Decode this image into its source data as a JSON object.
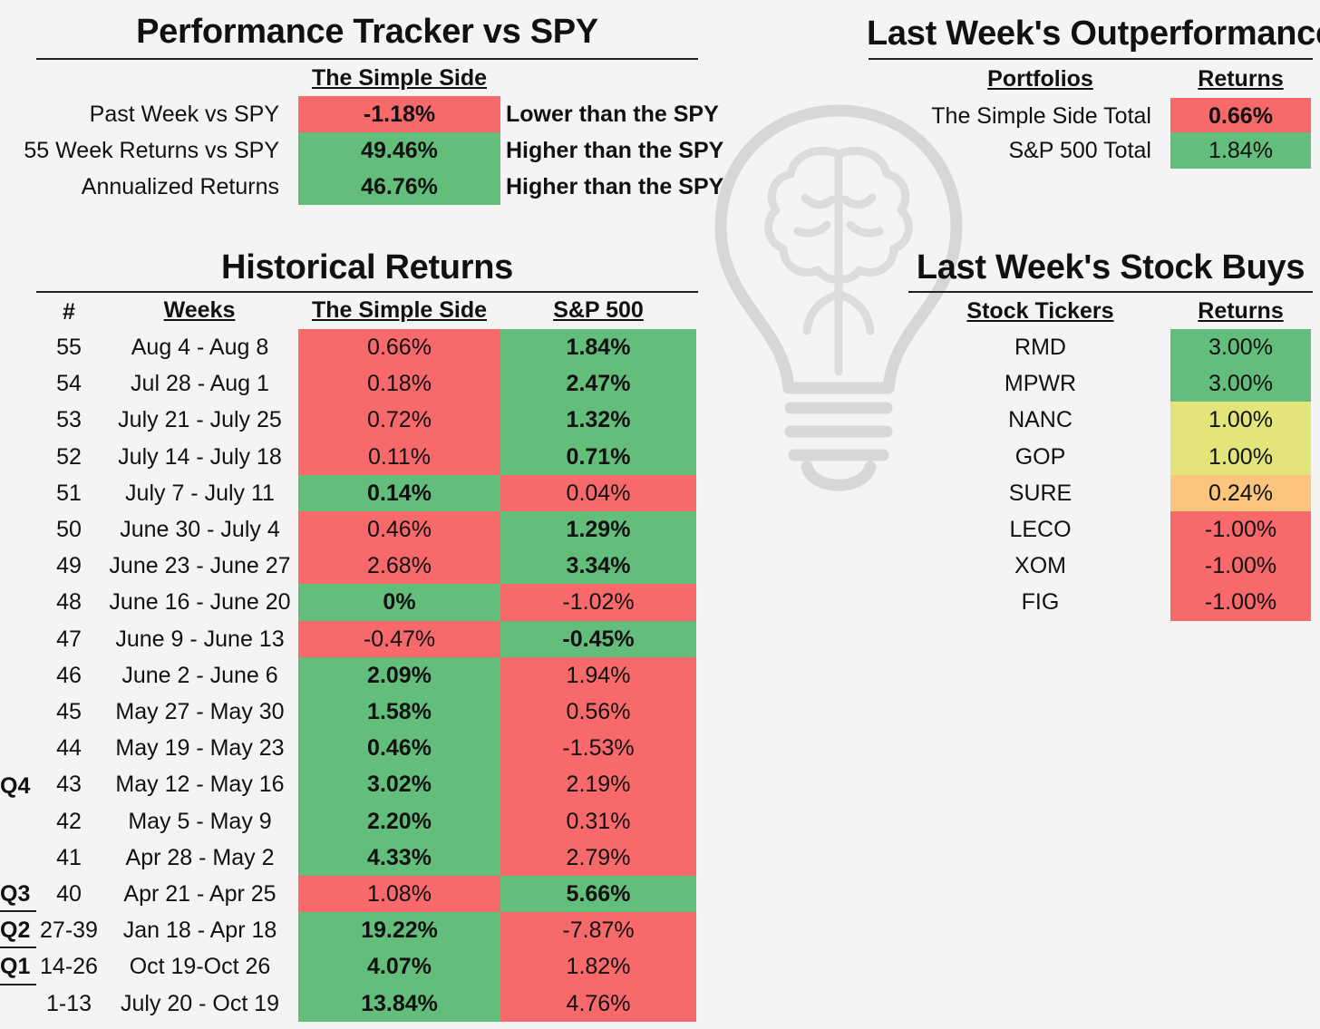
{
  "colors": {
    "green": "#63be7b",
    "red": "#f8696b",
    "yellow": "#e3e57a",
    "orange": "#fbc57d"
  },
  "tracker": {
    "title": "Performance Tracker vs SPY",
    "column_header": "The Simple Side",
    "rows": [
      {
        "label": "Past Week vs SPY",
        "value": "-1.18%",
        "note": "Lower than the SPY",
        "color": "red"
      },
      {
        "label": "55 Week Returns vs SPY",
        "value": "49.46%",
        "note": "Higher than the SPY",
        "color": "green"
      },
      {
        "label": "Annualized Returns",
        "value": "46.76%",
        "note": "Higher than the SPY",
        "color": "green"
      }
    ]
  },
  "outperformance": {
    "title": "Last Week's Outperformance",
    "headers": {
      "portfolios": "Portfolios",
      "returns": "Returns"
    },
    "rows": [
      {
        "name": "The Simple Side Total",
        "value": "0.66%",
        "color": "red",
        "bold": true
      },
      {
        "name": "S&P 500 Total",
        "value": "1.84%",
        "color": "green",
        "bold": false
      }
    ]
  },
  "historical": {
    "title": "Historical Returns",
    "headers": {
      "num": "#",
      "weeks": "Weeks",
      "simple": "The Simple Side",
      "sp": "S&P 500"
    },
    "quarters": {
      "q4": "Q4",
      "q3": "Q3",
      "q2": "Q2",
      "q1": "Q1"
    },
    "rows": [
      {
        "num": "55",
        "weeks": "Aug 4 - Aug 8",
        "simple": "0.66%",
        "sp": "1.84%",
        "winner": "sp"
      },
      {
        "num": "54",
        "weeks": "Jul 28 - Aug 1",
        "simple": "0.18%",
        "sp": "2.47%",
        "winner": "sp"
      },
      {
        "num": "53",
        "weeks": "July 21 - July 25",
        "simple": "0.72%",
        "sp": "1.32%",
        "winner": "sp"
      },
      {
        "num": "52",
        "weeks": "July 14 - July 18",
        "simple": "0.11%",
        "sp": "0.71%",
        "winner": "sp"
      },
      {
        "num": "51",
        "weeks": "July 7 - July 11",
        "simple": "0.14%",
        "sp": "0.04%",
        "winner": "simple"
      },
      {
        "num": "50",
        "weeks": "June 30 - July 4",
        "simple": "0.46%",
        "sp": "1.29%",
        "winner": "sp"
      },
      {
        "num": "49",
        "weeks": "June 23 - June 27",
        "simple": "2.68%",
        "sp": "3.34%",
        "winner": "sp"
      },
      {
        "num": "48",
        "weeks": "June 16 - June 20",
        "simple": "0%",
        "sp": "-1.02%",
        "winner": "simple"
      },
      {
        "num": "47",
        "weeks": "June 9 - June 13",
        "simple": "-0.47%",
        "sp": "-0.45%",
        "winner": "sp"
      },
      {
        "num": "46",
        "weeks": "June 2 - June 6",
        "simple": "2.09%",
        "sp": "1.94%",
        "winner": "simple"
      },
      {
        "num": "45",
        "weeks": "May 27 - May 30",
        "simple": "1.58%",
        "sp": "0.56%",
        "winner": "simple"
      },
      {
        "num": "44",
        "weeks": "May 19 - May 23",
        "simple": "0.46%",
        "sp": "-1.53%",
        "winner": "simple"
      },
      {
        "num": "43",
        "weeks": "May 12 - May 16",
        "simple": "3.02%",
        "sp": "2.19%",
        "winner": "simple"
      },
      {
        "num": "42",
        "weeks": "May 5 - May 9",
        "simple": "2.20%",
        "sp": "0.31%",
        "winner": "simple"
      },
      {
        "num": "41",
        "weeks": "Apr 28 - May 2",
        "simple": "4.33%",
        "sp": "2.79%",
        "winner": "simple"
      },
      {
        "num": "40",
        "weeks": "Apr 21 - Apr 25",
        "simple": "1.08%",
        "sp": "5.66%",
        "winner": "sp"
      },
      {
        "num": "27-39",
        "weeks": "Jan 18 - Apr 18",
        "simple": "19.22%",
        "sp": "-7.87%",
        "winner": "simple"
      },
      {
        "num": "14-26",
        "weeks": "Oct 19-Oct 26",
        "simple": "4.07%",
        "sp": "1.82%",
        "winner": "simple"
      },
      {
        "num": "1-13",
        "weeks": "July 20 - Oct 19",
        "simple": "13.84%",
        "sp": "4.76%",
        "winner": "simple"
      }
    ]
  },
  "buys": {
    "title": "Last Week's Stock Buys",
    "headers": {
      "tickers": "Stock Tickers",
      "returns": "Returns"
    },
    "rows": [
      {
        "ticker": "RMD",
        "value": "3.00%",
        "color": "green"
      },
      {
        "ticker": "MPWR",
        "value": "3.00%",
        "color": "green"
      },
      {
        "ticker": "NANC",
        "value": "1.00%",
        "color": "yellow"
      },
      {
        "ticker": "GOP",
        "value": "1.00%",
        "color": "yellow"
      },
      {
        "ticker": "SURE",
        "value": "0.24%",
        "color": "orange"
      },
      {
        "ticker": "LECO",
        "value": "-1.00%",
        "color": "red"
      },
      {
        "ticker": "XOM",
        "value": "-1.00%",
        "color": "red"
      },
      {
        "ticker": "FIG",
        "value": "-1.00%",
        "color": "red"
      }
    ]
  }
}
